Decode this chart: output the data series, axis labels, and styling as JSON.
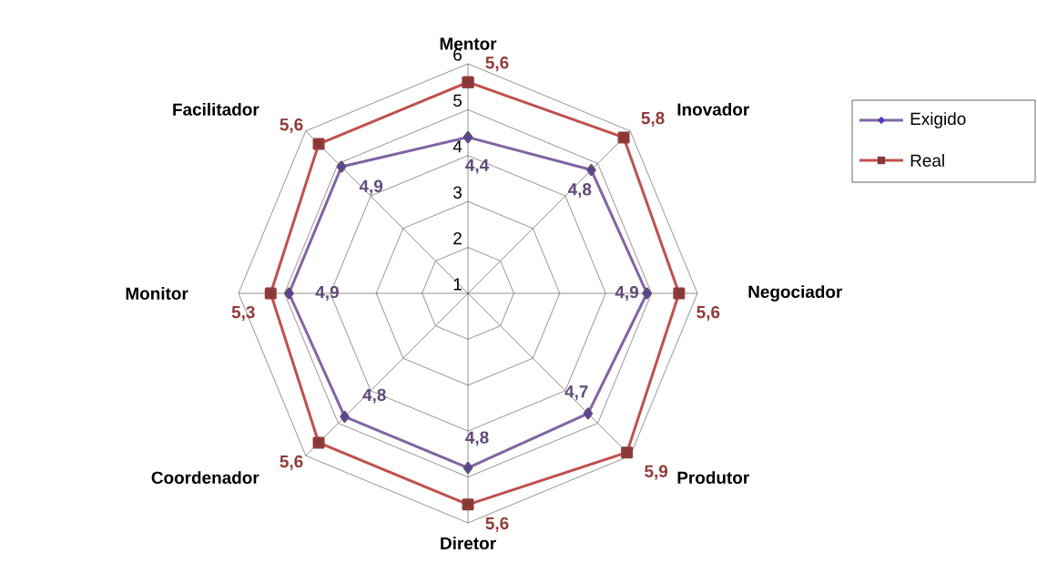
{
  "chart_data": {
    "type": "radar",
    "categories": [
      "Mentor",
      "Inovador",
      "Negociador",
      "Produtor",
      "Diretor",
      "Coordenador",
      "Monitor",
      "Facilitador"
    ],
    "ylim": [
      1,
      6
    ],
    "yticks": [
      1,
      2,
      3,
      4,
      5,
      6
    ],
    "grid": true,
    "legend": "top right",
    "series": [
      {
        "name": "Exigido",
        "color": "#8064a2",
        "marker": "diamond",
        "values": [
          4.4,
          4.8,
          4.9,
          4.7,
          4.8,
          4.8,
          4.9,
          4.9
        ],
        "value_labels": [
          "4,4",
          "4,8",
          "4,9",
          "4,7",
          "4,8",
          "4,8",
          "4,9",
          "4,9"
        ]
      },
      {
        "name": "Real",
        "color": "#c0504d",
        "marker": "square",
        "values": [
          5.6,
          5.8,
          5.6,
          5.9,
          5.6,
          5.6,
          5.3,
          5.6
        ],
        "value_labels": [
          "5,6",
          "5,8",
          "5,6",
          "5,9",
          "5,6",
          "5,6",
          "5,3",
          "5,6"
        ]
      }
    ]
  }
}
